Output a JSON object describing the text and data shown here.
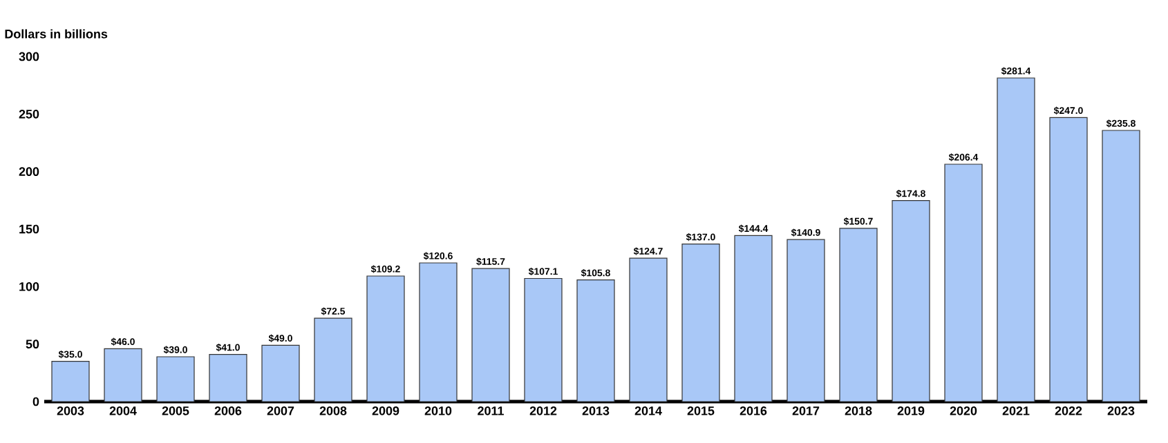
{
  "chart_data": {
    "type": "bar",
    "ylabel": "Dollars in billions",
    "categories": [
      "2003",
      "2004",
      "2005",
      "2006",
      "2007",
      "2008",
      "2009",
      "2010",
      "2011",
      "2012",
      "2013",
      "2014",
      "2015",
      "2016",
      "2017",
      "2018",
      "2019",
      "2020",
      "2021",
      "2022",
      "2023"
    ],
    "values": [
      35.0,
      46.0,
      39.0,
      41.0,
      49.0,
      72.5,
      109.2,
      120.6,
      115.7,
      107.1,
      105.8,
      124.7,
      137.0,
      144.4,
      140.9,
      150.7,
      174.8,
      206.4,
      281.4,
      247.0,
      235.8
    ],
    "value_labels": [
      "$35.0",
      "$46.0",
      "$39.0",
      "$41.0",
      "$49.0",
      "$72.5",
      "$109.2",
      "$120.6",
      "$115.7",
      "$107.1",
      "$105.8",
      "$124.7",
      "$137.0",
      "$144.4",
      "$140.9",
      "$150.7",
      "$174.8",
      "$206.4",
      "$281.4",
      "$247.0",
      "$235.8"
    ],
    "color": "#a9c8f7",
    "ylim": [
      0,
      300
    ],
    "yticks": [
      0,
      50,
      100,
      150,
      200,
      250,
      300
    ],
    "grid": false
  }
}
